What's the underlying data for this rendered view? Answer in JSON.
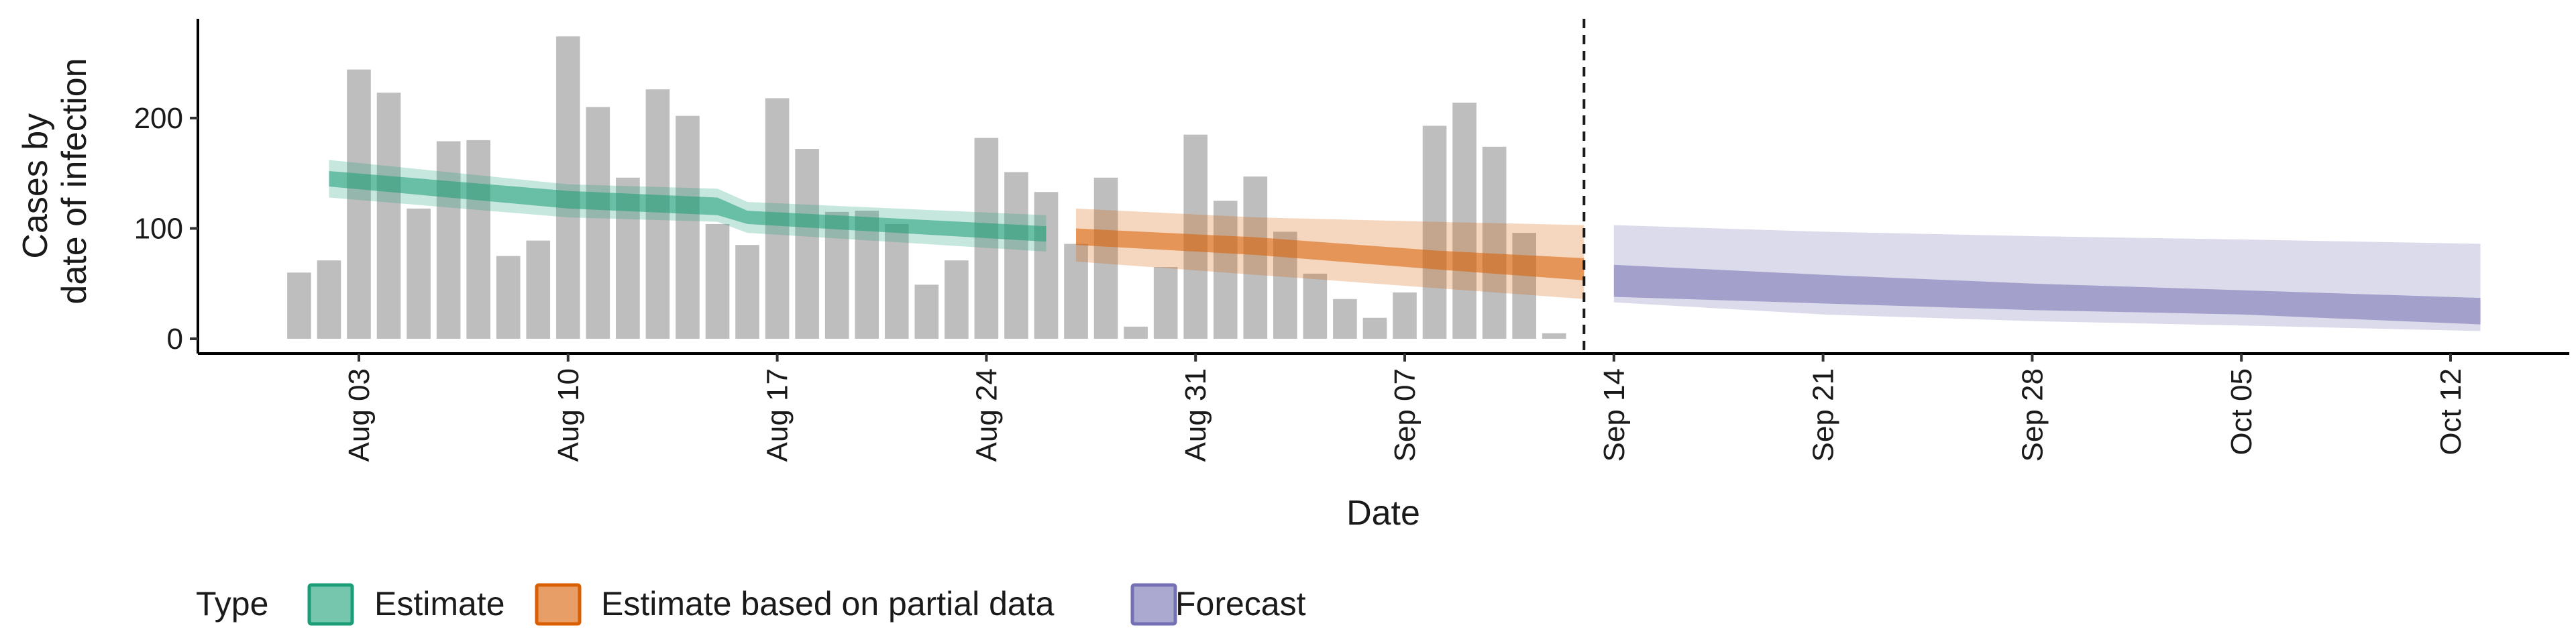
{
  "chart_data": {
    "type": "bar",
    "xlabel": "Date",
    "ylabel_lines": [
      "Cases by",
      "date of infection"
    ],
    "y_ticks": [
      0,
      100,
      200
    ],
    "ylim": [
      0,
      290
    ],
    "x_range": [
      "2021-07-29",
      "2021-10-16"
    ],
    "x_ticks": [
      {
        "date": "2021-08-03",
        "label": "Aug 03"
      },
      {
        "date": "2021-08-10",
        "label": "Aug 10"
      },
      {
        "date": "2021-08-17",
        "label": "Aug 17"
      },
      {
        "date": "2021-08-24",
        "label": "Aug 24"
      },
      {
        "date": "2021-08-31",
        "label": "Aug 31"
      },
      {
        "date": "2021-09-07",
        "label": "Sep 07"
      },
      {
        "date": "2021-09-14",
        "label": "Sep 14"
      },
      {
        "date": "2021-09-21",
        "label": "Sep 21"
      },
      {
        "date": "2021-09-28",
        "label": "Sep 28"
      },
      {
        "date": "2021-10-05",
        "label": "Oct 05"
      },
      {
        "date": "2021-10-12",
        "label": "Oct 12"
      }
    ],
    "vline_date": "2021-09-13",
    "bars": {
      "color": "#bebebe",
      "start_date": "2021-08-01",
      "values": [
        60,
        71,
        244,
        223,
        118,
        179,
        180,
        75,
        89,
        274,
        210,
        146,
        226,
        202,
        104,
        85,
        218,
        172,
        115,
        116,
        104,
        49,
        71,
        182,
        151,
        133,
        86,
        146,
        11,
        65,
        185,
        125,
        147,
        97,
        59,
        36,
        19,
        42,
        193,
        214,
        174,
        96,
        5
      ]
    },
    "legend": {
      "title": "Type",
      "items": [
        {
          "label": "Estimate",
          "fill": "#1b9e77",
          "border": "#1b9e77"
        },
        {
          "label": "Estimate based on partial data",
          "fill": "#d95f02",
          "border": "#d95f02"
        },
        {
          "label": "Forecast",
          "fill": "#7570b3",
          "border": "#7570b3"
        }
      ]
    },
    "series": [
      {
        "type": "Estimate",
        "color": "#1b9e77",
        "x": [
          "2021-08-02",
          "2021-08-10",
          "2021-08-15",
          "2021-08-16",
          "2021-08-26"
        ],
        "outer_upper": [
          162,
          140,
          136,
          124,
          112
        ],
        "outer_lower": [
          128,
          110,
          106,
          96,
          79
        ],
        "inner_upper": [
          152,
          134,
          128,
          116,
          102
        ],
        "inner_lower": [
          138,
          118,
          112,
          104,
          88
        ]
      },
      {
        "type": "Estimate based on partial data",
        "color": "#d95f02",
        "x": [
          "2021-08-27",
          "2021-09-02",
          "2021-09-08",
          "2021-09-13"
        ],
        "outer_upper": [
          118,
          110,
          106,
          103
        ],
        "outer_lower": [
          70,
          58,
          46,
          36
        ],
        "inner_upper": [
          100,
          92,
          80,
          73
        ],
        "inner_lower": [
          85,
          76,
          63,
          53
        ]
      },
      {
        "type": "Forecast",
        "color": "#7570b3",
        "x": [
          "2021-09-14",
          "2021-09-21",
          "2021-09-28",
          "2021-10-05",
          "2021-10-13"
        ],
        "outer_upper": [
          103,
          97,
          93,
          90,
          86
        ],
        "outer_lower": [
          33,
          22,
          16,
          12,
          7
        ],
        "inner_upper": [
          67,
          58,
          50,
          44,
          37
        ],
        "inner_lower": [
          38,
          32,
          26,
          22,
          13
        ]
      }
    ]
  }
}
